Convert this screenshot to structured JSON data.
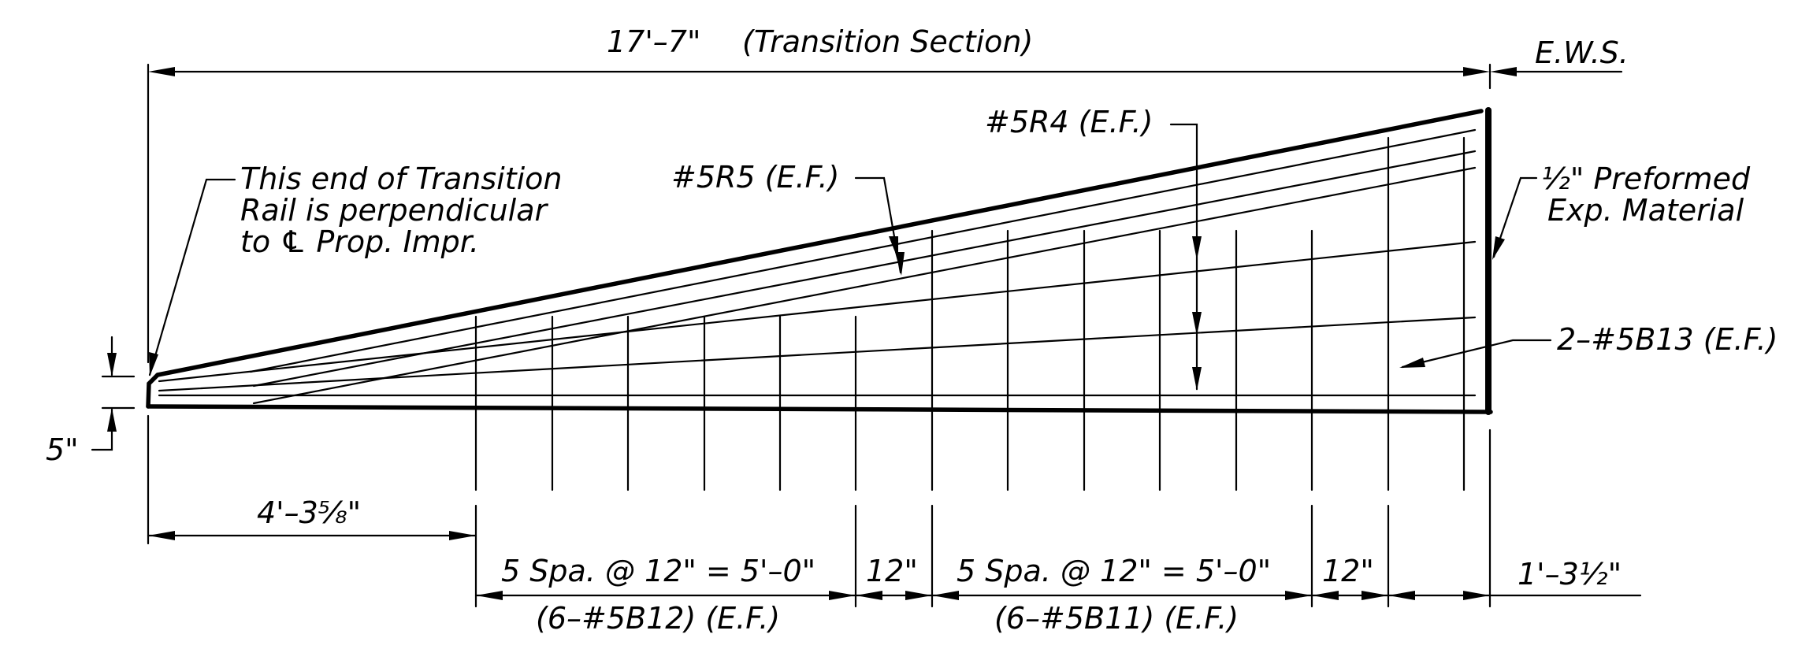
{
  "drawing": {
    "overall_length": "17'–7\"",
    "section_name": "(Transition Section)",
    "ews": "E.W.S.",
    "bar_r4": "#5R4  (E.F.)",
    "bar_r5": "#5R5  (E.F.)",
    "end_note": [
      "This  end  of  Transition",
      "Rail  is  perpendicular",
      "to  ℄  Prop.  Impr."
    ],
    "joint_note": [
      "½\"  Preformed",
      "Exp.  Material"
    ],
    "bar_b13": "2–#5B13  (E.F.)",
    "end_height": "5\"",
    "left_offset": "4'–3⁵⁄₈\"",
    "spacing_1": "5  Spa.  @  12\"  =  5'–0\"",
    "bars_b12": "(6–#5B12)  (E.F.)",
    "gap_1": "12\"",
    "spacing_2": "5  Spa.  @  12\"  =  5'–0\"",
    "bars_b11": "(6–#5B11)  (E.F.)",
    "gap_2": "12\"",
    "right_offset": "1'–3½\""
  }
}
